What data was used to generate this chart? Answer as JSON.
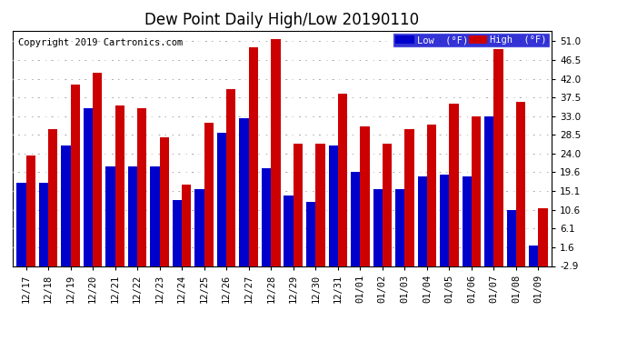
{
  "title": "Dew Point Daily High/Low 20190110",
  "copyright": "Copyright 2019 Cartronics.com",
  "categories": [
    "12/17",
    "12/18",
    "12/19",
    "12/20",
    "12/21",
    "12/22",
    "12/23",
    "12/24",
    "12/25",
    "12/26",
    "12/27",
    "12/28",
    "12/29",
    "12/30",
    "12/31",
    "01/01",
    "01/02",
    "01/03",
    "01/04",
    "01/05",
    "01/06",
    "01/07",
    "01/08",
    "01/09"
  ],
  "low_values": [
    17.0,
    17.0,
    26.0,
    35.0,
    21.0,
    21.0,
    21.0,
    13.0,
    15.5,
    29.0,
    32.5,
    20.5,
    14.0,
    12.5,
    26.0,
    19.6,
    15.5,
    15.5,
    18.5,
    19.0,
    18.5,
    33.0,
    10.5,
    2.0
  ],
  "high_values": [
    23.5,
    30.0,
    40.5,
    43.5,
    35.5,
    35.0,
    28.0,
    16.5,
    31.5,
    39.5,
    49.5,
    51.5,
    26.5,
    26.5,
    38.5,
    30.5,
    26.5,
    30.0,
    31.0,
    36.0,
    33.0,
    49.0,
    36.5,
    11.0
  ],
  "bar_width": 0.42,
  "low_color": "#0000cc",
  "high_color": "#cc0000",
  "bg_color": "#ffffff",
  "plot_bg_color": "#ffffff",
  "grid_color": "#aaaaaa",
  "ybase": -2.9,
  "ylim_min": -2.9,
  "ylim_max": 53.5,
  "yticks": [
    -2.9,
    1.6,
    6.1,
    10.6,
    15.1,
    19.6,
    24.0,
    28.5,
    33.0,
    37.5,
    42.0,
    46.5,
    51.0
  ],
  "legend_low_label": "Low  (°F)",
  "legend_high_label": "High  (°F)",
  "title_fontsize": 12,
  "tick_fontsize": 7.5,
  "copyright_fontsize": 7.5
}
